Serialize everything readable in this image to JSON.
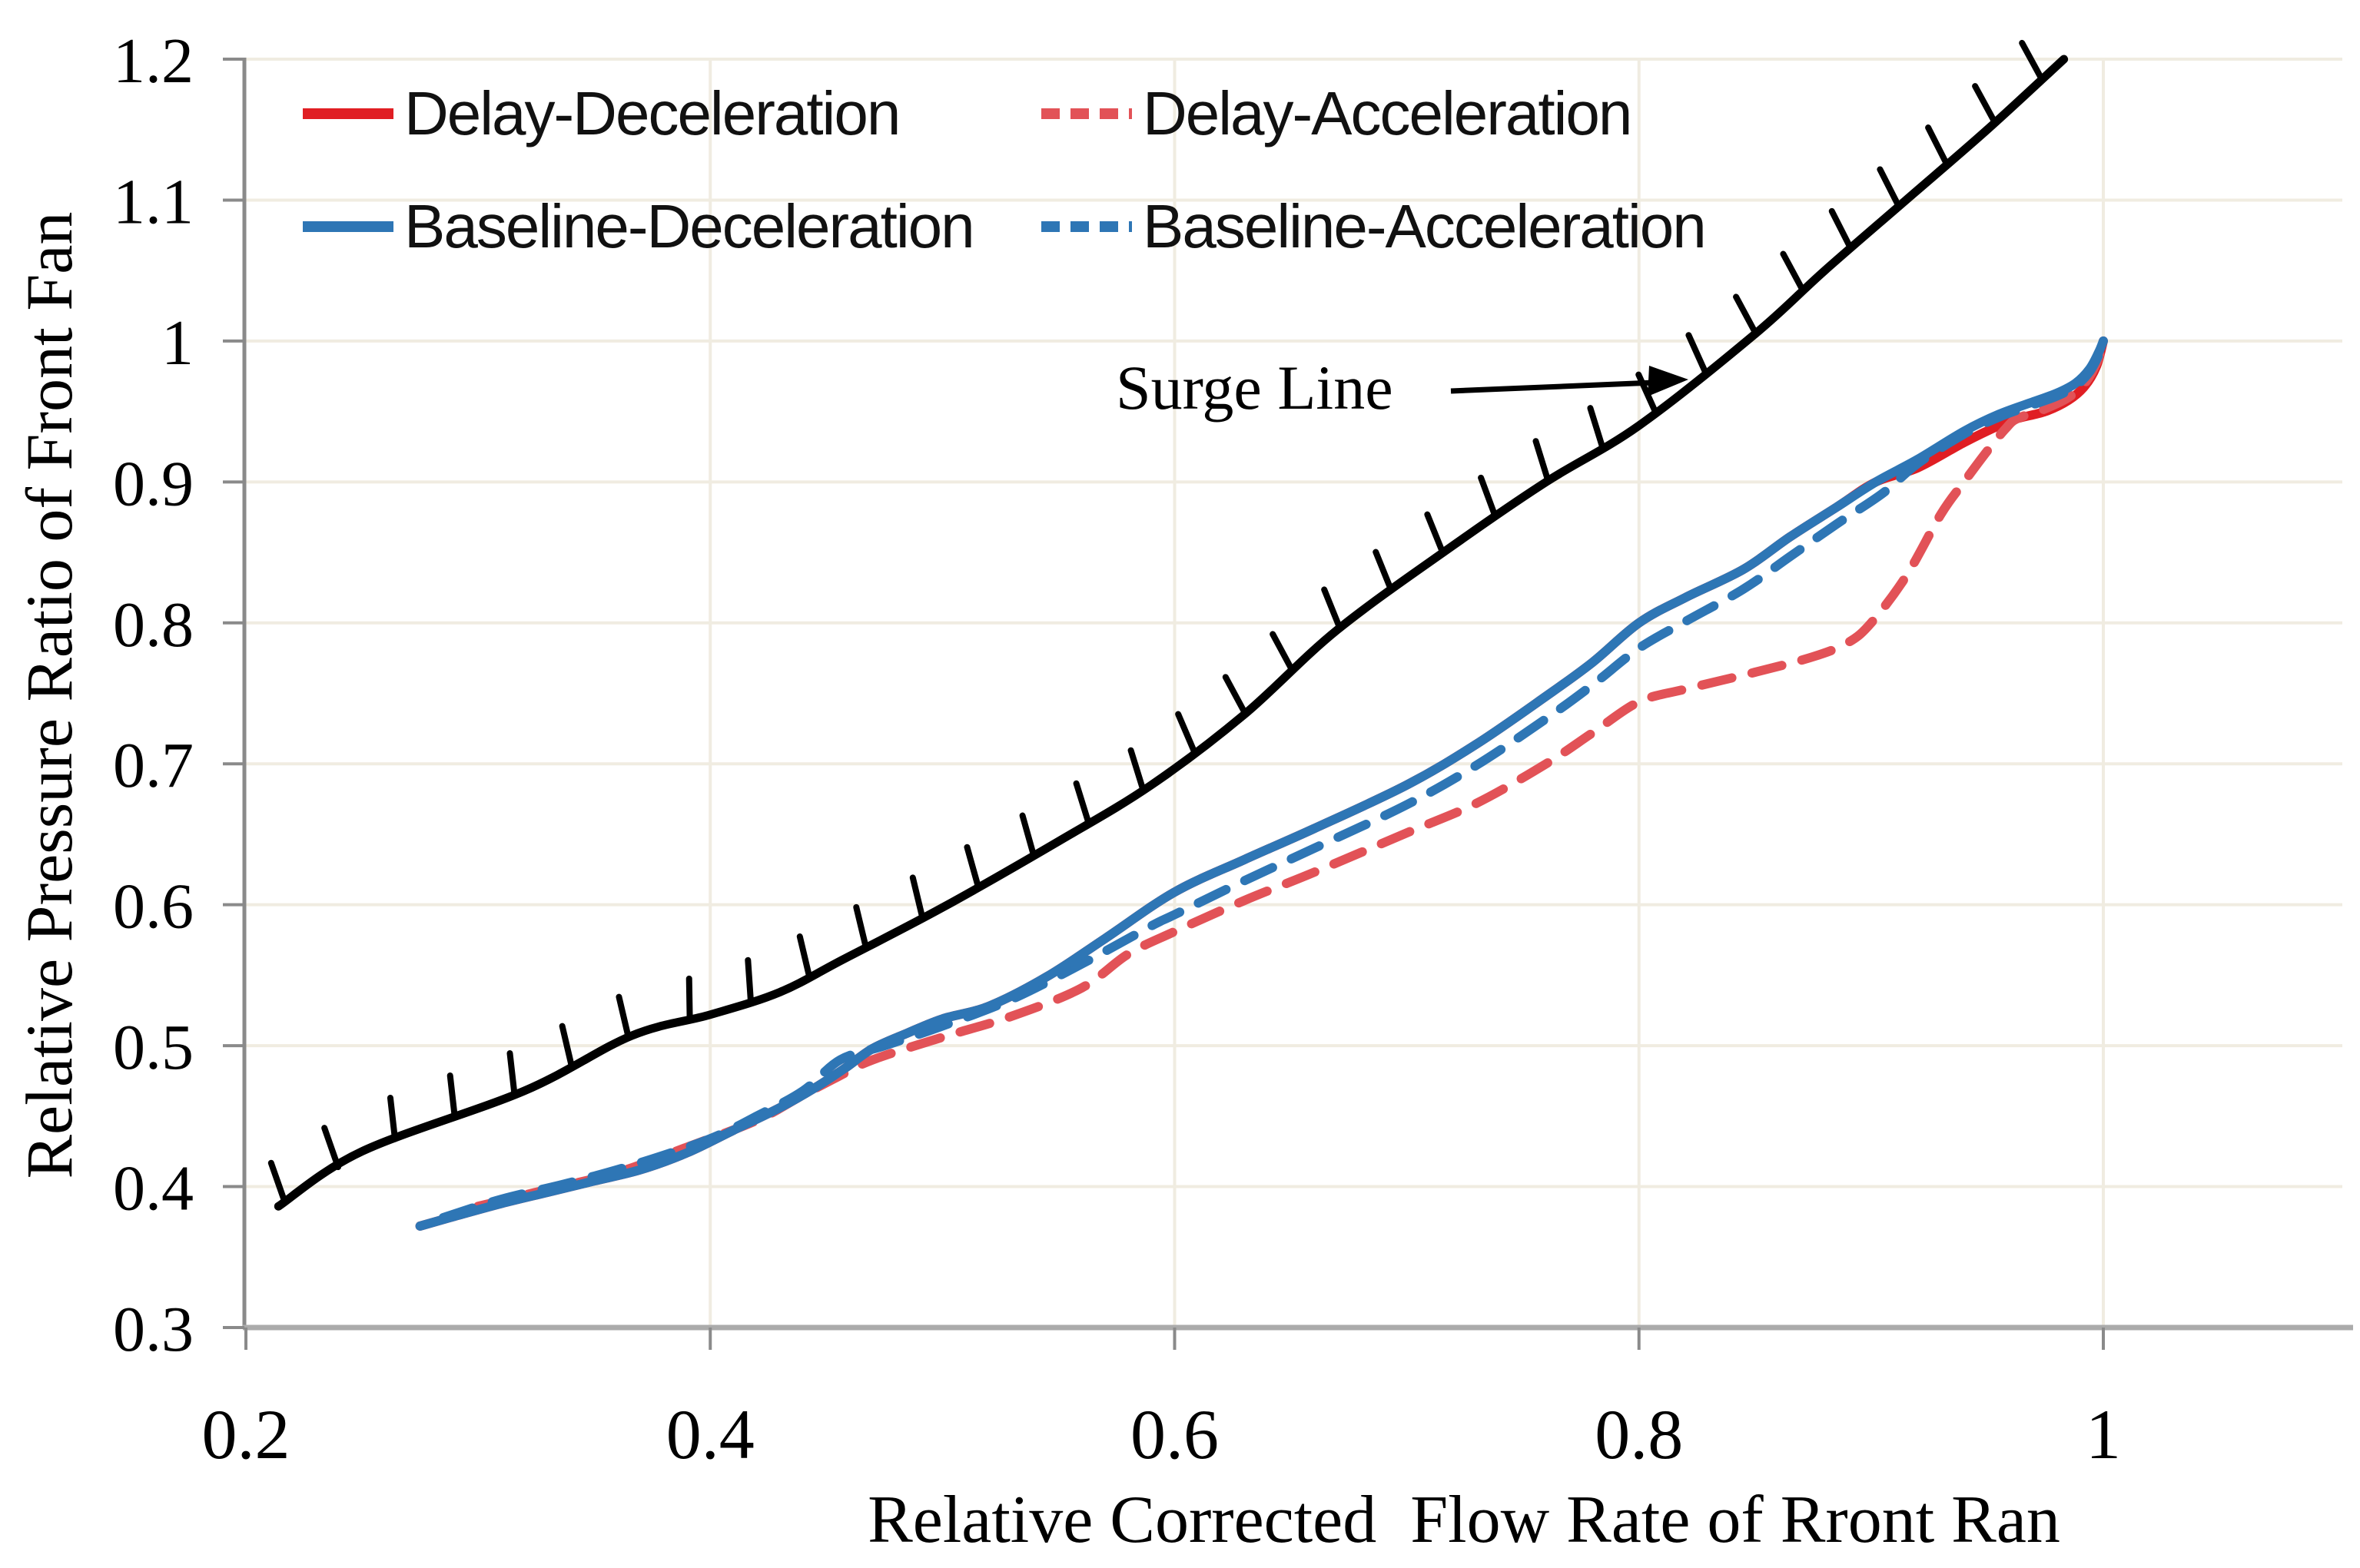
{
  "chart_data": {
    "type": "line",
    "title": "",
    "xlabel": "Relative Corrected  Flow Rate of Rront Ran",
    "ylabel": "Relative Pressure Ratio of Front Fan",
    "xlim": [
      0.2,
      1.104
    ],
    "ylim": [
      0.3,
      1.2
    ],
    "grid": true,
    "x_tick_values": [
      0.2,
      0.4,
      0.6,
      0.8,
      1.0
    ],
    "x_tick_labels": [
      "0.2",
      "0.4",
      "0.6",
      "0.8",
      "1"
    ],
    "y_tick_values": [
      0.3,
      0.4,
      0.5,
      0.6,
      0.7,
      0.8,
      0.9,
      1.0,
      1.1,
      1.2
    ],
    "y_tick_labels": [
      "0.3",
      "0.4",
      "0.5",
      "0.6",
      "0.7",
      "0.8",
      "0.9",
      "1",
      "1.1",
      "1.2"
    ],
    "grid_x": [
      0.4,
      0.6,
      0.8,
      1.0
    ],
    "grid_y": [
      0.4,
      0.5,
      0.6,
      0.7,
      0.8,
      0.9,
      1.0,
      1.1,
      1.2
    ],
    "legend_position": "top-left-inside",
    "colors": {
      "red": "#E01E23",
      "red_dashed": "#E25257",
      "blue": "#2E76B5",
      "surge_black": "#000000",
      "grid": "#F0ECE1",
      "x_axis": "#ABABAB",
      "y_axis": "#8A8A8A",
      "tick": "#8A8A8A",
      "text": "#000000"
    },
    "annotation": {
      "text": "Surge Line"
    },
    "surge_line": {
      "name": "Surge Line",
      "points": [
        [
          0.214,
          0.386
        ],
        [
          0.25,
          0.425
        ],
        [
          0.32,
          0.468
        ],
        [
          0.366,
          0.507
        ],
        [
          0.4,
          0.522
        ],
        [
          0.43,
          0.538
        ],
        [
          0.457,
          0.561
        ],
        [
          0.5,
          0.598
        ],
        [
          0.55,
          0.645
        ],
        [
          0.59,
          0.685
        ],
        [
          0.63,
          0.735
        ],
        [
          0.67,
          0.795
        ],
        [
          0.72,
          0.855
        ],
        [
          0.76,
          0.9
        ],
        [
          0.8,
          0.94
        ],
        [
          0.85,
          1.005
        ],
        [
          0.88,
          1.05
        ],
        [
          0.915,
          1.1
        ],
        [
          0.95,
          1.15
        ],
        [
          0.983,
          1.2
        ]
      ]
    },
    "series": [
      {
        "name": "Delay-Deceleration",
        "style": "solid",
        "color_key": "red",
        "points": [
          [
            0.275,
            0.372
          ],
          [
            0.29,
            0.379
          ],
          [
            0.31,
            0.388
          ],
          [
            0.33,
            0.396
          ],
          [
            0.35,
            0.404
          ],
          [
            0.37,
            0.412
          ],
          [
            0.39,
            0.424
          ],
          [
            0.41,
            0.44
          ],
          [
            0.43,
            0.456
          ],
          [
            0.445,
            0.47
          ],
          [
            0.458,
            0.484
          ],
          [
            0.47,
            0.498
          ],
          [
            0.485,
            0.509
          ],
          [
            0.5,
            0.519
          ],
          [
            0.52,
            0.528
          ],
          [
            0.545,
            0.549
          ],
          [
            0.57,
            0.576
          ],
          [
            0.6,
            0.609
          ],
          [
            0.63,
            0.632
          ],
          [
            0.66,
            0.654
          ],
          [
            0.7,
            0.685
          ],
          [
            0.73,
            0.714
          ],
          [
            0.76,
            0.748
          ],
          [
            0.78,
            0.772
          ],
          [
            0.8,
            0.8
          ],
          [
            0.82,
            0.818
          ],
          [
            0.845,
            0.838
          ],
          [
            0.865,
            0.861
          ],
          [
            0.885,
            0.882
          ],
          [
            0.902,
            0.9
          ],
          [
            0.92,
            0.91
          ],
          [
            0.94,
            0.928
          ],
          [
            0.955,
            0.94
          ],
          [
            0.963,
            0.945
          ],
          [
            0.975,
            0.95
          ],
          [
            0.985,
            0.958
          ],
          [
            0.992,
            0.968
          ],
          [
            0.997,
            0.982
          ],
          [
            1.0,
            1.0
          ]
        ]
      },
      {
        "name": "Delay-Acceleration",
        "style": "dashed",
        "color_key": "red_dashed",
        "points": [
          [
            0.3,
            0.386
          ],
          [
            0.33,
            0.398
          ],
          [
            0.36,
            0.41
          ],
          [
            0.39,
            0.428
          ],
          [
            0.42,
            0.447
          ],
          [
            0.44,
            0.465
          ],
          [
            0.455,
            0.478
          ],
          [
            0.47,
            0.49
          ],
          [
            0.5,
            0.506
          ],
          [
            0.53,
            0.521
          ],
          [
            0.56,
            0.541
          ],
          [
            0.58,
            0.565
          ],
          [
            0.6,
            0.581
          ],
          [
            0.63,
            0.603
          ],
          [
            0.66,
            0.623
          ],
          [
            0.7,
            0.651
          ],
          [
            0.73,
            0.672
          ],
          [
            0.76,
            0.7
          ],
          [
            0.78,
            0.722
          ],
          [
            0.8,
            0.744
          ],
          [
            0.82,
            0.753
          ],
          [
            0.85,
            0.765
          ],
          [
            0.875,
            0.776
          ],
          [
            0.89,
            0.786
          ],
          [
            0.9,
            0.8
          ],
          [
            0.915,
            0.833
          ],
          [
            0.93,
            0.877
          ],
          [
            0.94,
            0.9
          ],
          [
            0.95,
            0.922
          ],
          [
            0.958,
            0.938
          ],
          [
            0.963,
            0.945
          ],
          [
            0.975,
            0.952
          ],
          [
            0.985,
            0.96
          ],
          [
            0.992,
            0.97
          ],
          [
            0.997,
            0.984
          ],
          [
            1.0,
            1.0
          ]
        ]
      },
      {
        "name": "Baseline-Acceleration",
        "style": "dashed",
        "color_key": "blue",
        "points": [
          [
            0.285,
            0.378
          ],
          [
            0.31,
            0.391
          ],
          [
            0.34,
            0.403
          ],
          [
            0.37,
            0.417
          ],
          [
            0.4,
            0.434
          ],
          [
            0.42,
            0.45
          ],
          [
            0.44,
            0.468
          ],
          [
            0.456,
            0.49
          ],
          [
            0.475,
            0.5
          ],
          [
            0.5,
            0.514
          ],
          [
            0.53,
            0.533
          ],
          [
            0.56,
            0.558
          ],
          [
            0.59,
            0.585
          ],
          [
            0.6,
            0.593
          ],
          [
            0.63,
            0.617
          ],
          [
            0.66,
            0.64
          ],
          [
            0.7,
            0.671
          ],
          [
            0.73,
            0.699
          ],
          [
            0.76,
            0.732
          ],
          [
            0.78,
            0.756
          ],
          [
            0.8,
            0.782
          ],
          [
            0.82,
            0.801
          ],
          [
            0.845,
            0.824
          ],
          [
            0.865,
            0.847
          ],
          [
            0.885,
            0.87
          ],
          [
            0.905,
            0.892
          ],
          [
            0.92,
            0.913
          ],
          [
            0.94,
            0.934
          ],
          [
            0.955,
            0.946
          ],
          [
            0.97,
            0.955
          ],
          [
            0.98,
            0.961
          ],
          [
            0.988,
            0.968
          ],
          [
            0.994,
            0.978
          ],
          [
            0.998,
            0.99
          ],
          [
            1.0,
            0.998
          ]
        ]
      },
      {
        "name": "Baseline-Deceleration",
        "style": "solid",
        "color_key": "blue",
        "points": [
          [
            0.275,
            0.372
          ],
          [
            0.29,
            0.379
          ],
          [
            0.31,
            0.388
          ],
          [
            0.33,
            0.396
          ],
          [
            0.35,
            0.404
          ],
          [
            0.37,
            0.412
          ],
          [
            0.39,
            0.424
          ],
          [
            0.41,
            0.44
          ],
          [
            0.43,
            0.456
          ],
          [
            0.445,
            0.47
          ],
          [
            0.458,
            0.484
          ],
          [
            0.47,
            0.498
          ],
          [
            0.485,
            0.509
          ],
          [
            0.5,
            0.519
          ],
          [
            0.52,
            0.528
          ],
          [
            0.545,
            0.549
          ],
          [
            0.57,
            0.576
          ],
          [
            0.6,
            0.609
          ],
          [
            0.63,
            0.632
          ],
          [
            0.66,
            0.654
          ],
          [
            0.7,
            0.685
          ],
          [
            0.73,
            0.714
          ],
          [
            0.76,
            0.748
          ],
          [
            0.78,
            0.772
          ],
          [
            0.8,
            0.8
          ],
          [
            0.82,
            0.818
          ],
          [
            0.845,
            0.838
          ],
          [
            0.865,
            0.861
          ],
          [
            0.885,
            0.882
          ],
          [
            0.902,
            0.9
          ],
          [
            0.92,
            0.916
          ],
          [
            0.94,
            0.936
          ],
          [
            0.955,
            0.948
          ],
          [
            0.97,
            0.957
          ],
          [
            0.98,
            0.963
          ],
          [
            0.988,
            0.97
          ],
          [
            0.994,
            0.98
          ],
          [
            0.998,
            0.992
          ],
          [
            1.0,
            1.0
          ]
        ]
      }
    ]
  },
  "legend": {
    "items": [
      {
        "label": "Delay-Deceleration",
        "color_key": "red",
        "style": "solid"
      },
      {
        "label": "Delay-Acceleration",
        "color_key": "red_dashed",
        "style": "dashed"
      },
      {
        "label": "Baseline-Deceleration",
        "color_key": "blue",
        "style": "solid"
      },
      {
        "label": "Baseline-Acceleration",
        "color_key": "blue",
        "style": "dashed"
      }
    ]
  }
}
